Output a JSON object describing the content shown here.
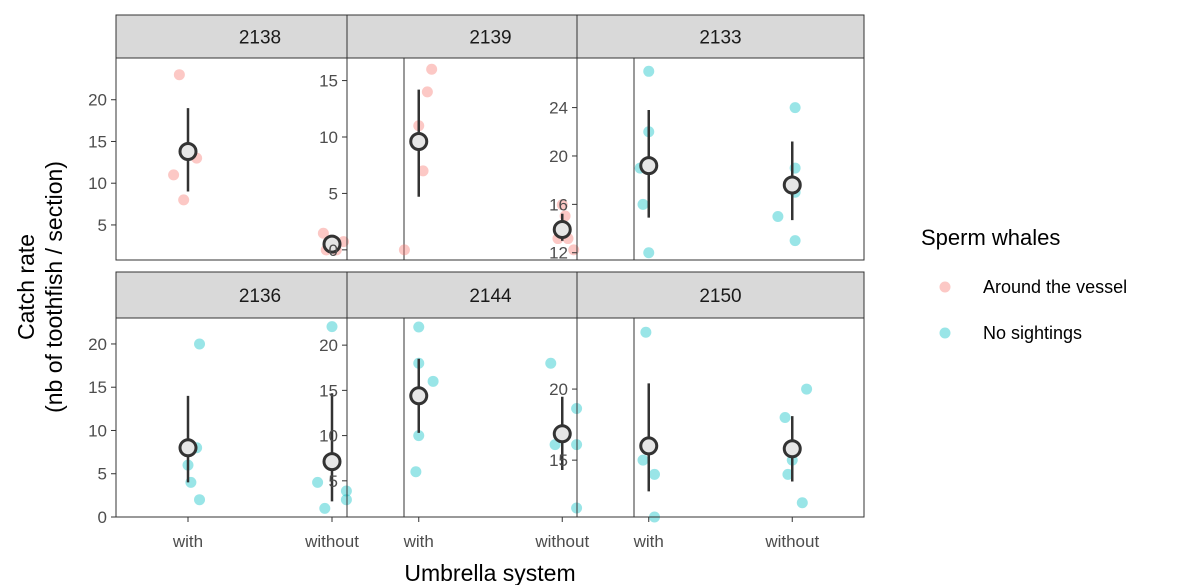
{
  "chart_data": {
    "type": "scatter",
    "subtype": "faceted jittered strip plot with mean and confidence interval",
    "xlabel": "Umbrella system",
    "ylabel_lines": [
      "Catch rate",
      "(nb of toothfish / section)"
    ],
    "categories": [
      "with",
      "without"
    ],
    "legend": {
      "title": "Sperm whales",
      "placement": "right",
      "items": [
        {
          "label": "Around the vessel",
          "color": "#F8766D"
        },
        {
          "label": "No sightings",
          "color": "#00BFC4"
        }
      ]
    },
    "grid": false,
    "point_alpha": 0.4,
    "summary_style": {
      "point_fill": "#e6e6e6",
      "point_stroke": "#333333",
      "line_color": "#333333"
    },
    "facets": [
      {
        "title": "2138",
        "group": "Around the vessel",
        "ylim": [
          0.8,
          25
        ],
        "yticks": [
          5,
          10,
          15,
          20
        ],
        "points": [
          {
            "x": "with",
            "jitter": -0.06,
            "y": 23
          },
          {
            "x": "with",
            "jitter": 0.02,
            "y": 14
          },
          {
            "x": "with",
            "jitter": 0.06,
            "y": 13
          },
          {
            "x": "with",
            "jitter": -0.1,
            "y": 11
          },
          {
            "x": "with",
            "jitter": -0.03,
            "y": 8
          },
          {
            "x": "without",
            "jitter": -0.06,
            "y": 4
          },
          {
            "x": "without",
            "jitter": 0.08,
            "y": 3
          },
          {
            "x": "without",
            "jitter": -0.01,
            "y": 3
          },
          {
            "x": "without",
            "jitter": 0.03,
            "y": 2
          },
          {
            "x": "without",
            "jitter": -0.04,
            "y": 2
          }
        ],
        "summary": [
          {
            "x": "with",
            "mean": 13.8,
            "lower": 9.0,
            "upper": 19.0
          },
          {
            "x": "without",
            "mean": 2.7,
            "lower": 2.0,
            "upper": 3.5
          }
        ]
      },
      {
        "title": "2139",
        "group": "Around the vessel",
        "ylim": [
          -0.9,
          17
        ],
        "yticks": [
          0,
          5,
          10,
          15
        ],
        "points": [
          {
            "x": "with",
            "jitter": 0.09,
            "y": 16
          },
          {
            "x": "with",
            "jitter": 0.06,
            "y": 14
          },
          {
            "x": "with",
            "jitter": 0.0,
            "y": 11
          },
          {
            "x": "with",
            "jitter": 0.03,
            "y": 7
          },
          {
            "x": "with",
            "jitter": -0.1,
            "y": 0
          },
          {
            "x": "without",
            "jitter": 0.0,
            "y": 4
          },
          {
            "x": "without",
            "jitter": 0.02,
            "y": 3
          },
          {
            "x": "without",
            "jitter": -0.03,
            "y": 1
          },
          {
            "x": "without",
            "jitter": 0.04,
            "y": 1
          },
          {
            "x": "without",
            "jitter": 0.08,
            "y": 0
          }
        ],
        "summary": [
          {
            "x": "with",
            "mean": 9.6,
            "lower": 4.7,
            "upper": 14.2
          },
          {
            "x": "without",
            "mean": 1.8,
            "lower": 0.8,
            "upper": 3.2
          }
        ]
      },
      {
        "title": "2133",
        "group": "No sightings",
        "ylim": [
          11.4,
          28.1
        ],
        "yticks": [
          12,
          16,
          20,
          24
        ],
        "points": [
          {
            "x": "with",
            "jitter": 0.0,
            "y": 27
          },
          {
            "x": "with",
            "jitter": -0.06,
            "y": 19
          },
          {
            "x": "with",
            "jitter": 0.0,
            "y": 22
          },
          {
            "x": "with",
            "jitter": -0.04,
            "y": 16
          },
          {
            "x": "with",
            "jitter": 0.0,
            "y": 12
          },
          {
            "x": "without",
            "jitter": 0.02,
            "y": 24
          },
          {
            "x": "without",
            "jitter": 0.02,
            "y": 19
          },
          {
            "x": "without",
            "jitter": 0.02,
            "y": 17
          },
          {
            "x": "without",
            "jitter": -0.1,
            "y": 15
          },
          {
            "x": "without",
            "jitter": 0.02,
            "y": 13
          }
        ],
        "summary": [
          {
            "x": "with",
            "mean": 19.2,
            "lower": 14.9,
            "upper": 23.8
          },
          {
            "x": "without",
            "mean": 17.6,
            "lower": 14.7,
            "upper": 21.2
          }
        ]
      },
      {
        "title": "2136",
        "group": "No sightings",
        "ylim": [
          0,
          23
        ],
        "yticks": [
          0,
          5,
          10,
          15,
          20
        ],
        "points": [
          {
            "x": "with",
            "jitter": 0.08,
            "y": 20
          },
          {
            "x": "with",
            "jitter": 0.06,
            "y": 8
          },
          {
            "x": "with",
            "jitter": 0.0,
            "y": 6
          },
          {
            "x": "with",
            "jitter": 0.02,
            "y": 4
          },
          {
            "x": "with",
            "jitter": 0.08,
            "y": 2
          },
          {
            "x": "without",
            "jitter": 0.0,
            "y": 22
          },
          {
            "x": "without",
            "jitter": -0.1,
            "y": 4
          },
          {
            "x": "without",
            "jitter": 0.1,
            "y": 3
          },
          {
            "x": "without",
            "jitter": 0.1,
            "y": 2
          },
          {
            "x": "without",
            "jitter": -0.05,
            "y": 1
          }
        ],
        "summary": [
          {
            "x": "with",
            "mean": 8.0,
            "lower": 4.0,
            "upper": 14.0
          },
          {
            "x": "without",
            "mean": 6.4,
            "lower": 1.8,
            "upper": 14.3
          }
        ]
      },
      {
        "title": "2144",
        "group": "No sightings",
        "ylim": [
          1,
          23
        ],
        "yticks": [
          5,
          10,
          15,
          20
        ],
        "points": [
          {
            "x": "with",
            "jitter": 0.0,
            "y": 22
          },
          {
            "x": "with",
            "jitter": 0.0,
            "y": 18
          },
          {
            "x": "with",
            "jitter": 0.1,
            "y": 16
          },
          {
            "x": "with",
            "jitter": 0.0,
            "y": 10
          },
          {
            "x": "with",
            "jitter": -0.02,
            "y": 6
          },
          {
            "x": "without",
            "jitter": -0.08,
            "y": 18
          },
          {
            "x": "without",
            "jitter": 0.1,
            "y": 13
          },
          {
            "x": "without",
            "jitter": -0.05,
            "y": 9
          },
          {
            "x": "without",
            "jitter": 0.1,
            "y": 9
          },
          {
            "x": "without",
            "jitter": 0.1,
            "y": 2
          }
        ],
        "summary": [
          {
            "x": "with",
            "mean": 14.4,
            "lower": 10.3,
            "upper": 18.5
          },
          {
            "x": "without",
            "mean": 10.2,
            "lower": 6.2,
            "upper": 14.3
          }
        ]
      },
      {
        "title": "2150",
        "group": "No sightings",
        "ylim": [
          11,
          25
        ],
        "yticks": [
          15,
          20
        ],
        "points": [
          {
            "x": "with",
            "jitter": -0.02,
            "y": 24
          },
          {
            "x": "with",
            "jitter": -0.04,
            "y": 15
          },
          {
            "x": "with",
            "jitter": 0.04,
            "y": 14
          },
          {
            "x": "with",
            "jitter": 0.04,
            "y": 11
          },
          {
            "x": "without",
            "jitter": 0.1,
            "y": 20
          },
          {
            "x": "without",
            "jitter": -0.05,
            "y": 18
          },
          {
            "x": "without",
            "jitter": 0.0,
            "y": 15
          },
          {
            "x": "without",
            "jitter": -0.03,
            "y": 14
          },
          {
            "x": "without",
            "jitter": 0.07,
            "y": 12
          }
        ],
        "summary": [
          {
            "x": "with",
            "mean": 16.0,
            "lower": 12.8,
            "upper": 20.4
          },
          {
            "x": "without",
            "mean": 15.8,
            "lower": 13.5,
            "upper": 18.1
          }
        ]
      }
    ]
  }
}
